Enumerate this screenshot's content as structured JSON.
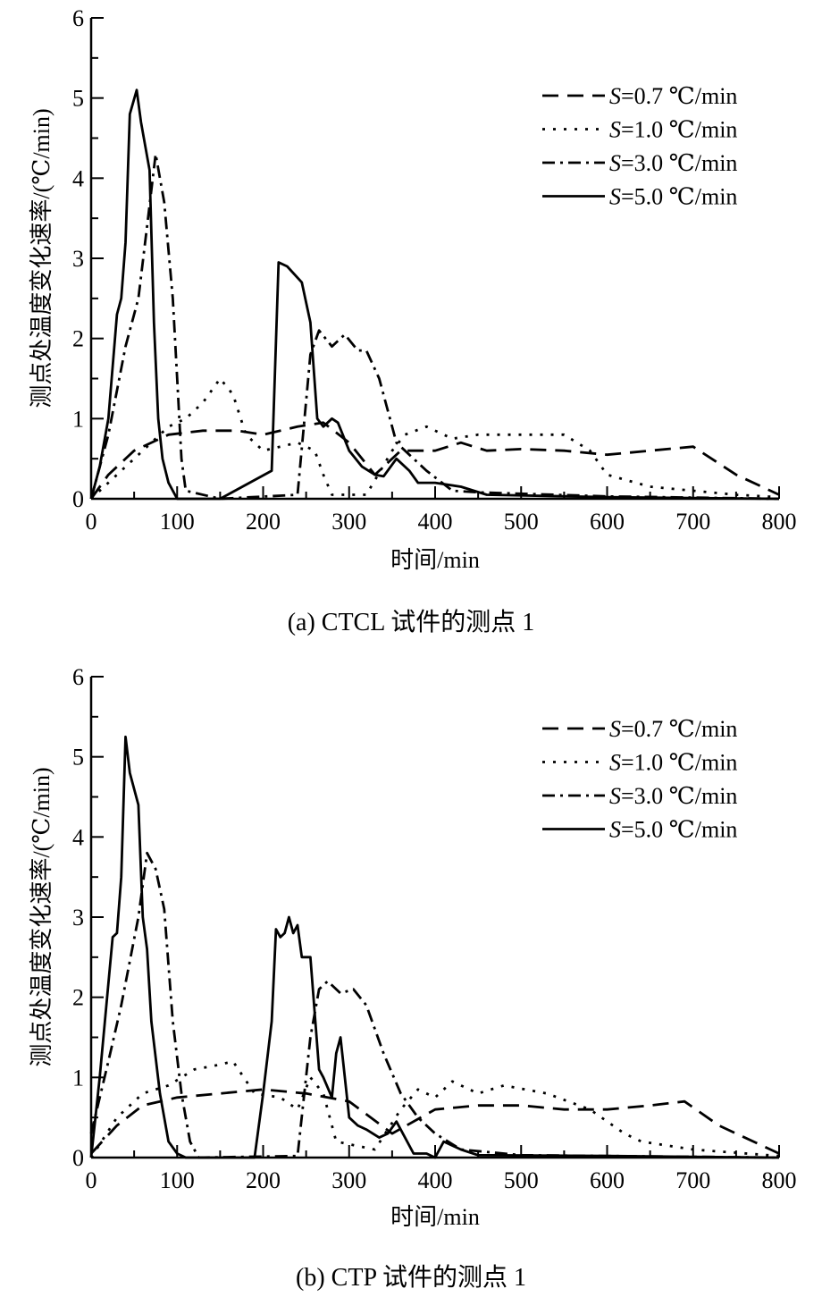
{
  "chart_data": [
    {
      "type": "line",
      "caption": "(a) CTCL 试件的测点 1",
      "xlabel": "时间/min",
      "ylabel": "测点处温度变化速率/(℃/min)",
      "xlim": [
        0,
        800
      ],
      "ylim": [
        0,
        6
      ],
      "xticks": [
        "0",
        "100",
        "200",
        "300",
        "400",
        "500",
        "600",
        "700",
        "800"
      ],
      "yticks": [
        "0",
        "1",
        "2",
        "3",
        "4",
        "5",
        "6"
      ],
      "grid": false,
      "legend_position": "top-right",
      "series": [
        {
          "name": "S=0.7 ℃/min",
          "style": "dashed",
          "points": [
            [
              0,
              0
            ],
            [
              20,
              0.3
            ],
            [
              50,
              0.6
            ],
            [
              90,
              0.8
            ],
            [
              130,
              0.85
            ],
            [
              170,
              0.85
            ],
            [
              200,
              0.8
            ],
            [
              240,
              0.9
            ],
            [
              270,
              0.95
            ],
            [
              300,
              0.7
            ],
            [
              330,
              0.3
            ],
            [
              360,
              0.6
            ],
            [
              400,
              0.6
            ],
            [
              430,
              0.7
            ],
            [
              460,
              0.6
            ],
            [
              500,
              0.62
            ],
            [
              550,
              0.6
            ],
            [
              600,
              0.55
            ],
            [
              650,
              0.6
            ],
            [
              700,
              0.65
            ],
            [
              750,
              0.3
            ],
            [
              800,
              0.05
            ]
          ]
        },
        {
          "name": "S=1.0 ℃/min",
          "style": "dotted",
          "points": [
            [
              0,
              0
            ],
            [
              50,
              0.5
            ],
            [
              90,
              0.9
            ],
            [
              110,
              1.0
            ],
            [
              130,
              1.2
            ],
            [
              150,
              1.5
            ],
            [
              165,
              1.3
            ],
            [
              180,
              0.8
            ],
            [
              200,
              0.6
            ],
            [
              240,
              0.7
            ],
            [
              260,
              0.6
            ],
            [
              270,
              0.3
            ],
            [
              280,
              0.05
            ],
            [
              320,
              0.05
            ],
            [
              350,
              0.6
            ],
            [
              365,
              0.8
            ],
            [
              390,
              0.9
            ],
            [
              420,
              0.75
            ],
            [
              450,
              0.8
            ],
            [
              500,
              0.8
            ],
            [
              550,
              0.8
            ],
            [
              580,
              0.6
            ],
            [
              600,
              0.3
            ],
            [
              650,
              0.15
            ],
            [
              700,
              0.1
            ],
            [
              750,
              0.05
            ],
            [
              800,
              0.02
            ]
          ]
        },
        {
          "name": "S=3.0 ℃/min",
          "style": "dashdot",
          "points": [
            [
              0,
              0
            ],
            [
              20,
              0.8
            ],
            [
              40,
              1.9
            ],
            [
              55,
              2.5
            ],
            [
              65,
              3.4
            ],
            [
              75,
              4.3
            ],
            [
              85,
              3.7
            ],
            [
              95,
              2.5
            ],
            [
              100,
              1.5
            ],
            [
              105,
              0.5
            ],
            [
              110,
              0.1
            ],
            [
              150,
              0
            ],
            [
              240,
              0.05
            ],
            [
              255,
              1.8
            ],
            [
              265,
              2.1
            ],
            [
              280,
              1.9
            ],
            [
              295,
              2.05
            ],
            [
              310,
              1.85
            ],
            [
              320,
              1.85
            ],
            [
              335,
              1.5
            ],
            [
              355,
              0.7
            ],
            [
              370,
              0.55
            ],
            [
              390,
              0.35
            ],
            [
              420,
              0.1
            ],
            [
              450,
              0.08
            ],
            [
              600,
              0.03
            ],
            [
              800,
              0
            ]
          ]
        },
        {
          "name": "S=5.0 ℃/min",
          "style": "solid",
          "points": [
            [
              0,
              0
            ],
            [
              10,
              0.4
            ],
            [
              20,
              1.0
            ],
            [
              30,
              2.3
            ],
            [
              35,
              2.5
            ],
            [
              40,
              3.2
            ],
            [
              45,
              4.8
            ],
            [
              53,
              5.1
            ],
            [
              58,
              4.7
            ],
            [
              68,
              4.1
            ],
            [
              73,
              2.2
            ],
            [
              78,
              1.0
            ],
            [
              83,
              0.5
            ],
            [
              90,
              0.2
            ],
            [
              100,
              0
            ],
            [
              150,
              0
            ],
            [
              210,
              0.35
            ],
            [
              218,
              2.95
            ],
            [
              228,
              2.9
            ],
            [
              245,
              2.7
            ],
            [
              255,
              2.2
            ],
            [
              263,
              1.0
            ],
            [
              270,
              0.9
            ],
            [
              280,
              1.0
            ],
            [
              287,
              0.95
            ],
            [
              300,
              0.6
            ],
            [
              315,
              0.4
            ],
            [
              330,
              0.3
            ],
            [
              340,
              0.28
            ],
            [
              355,
              0.5
            ],
            [
              370,
              0.35
            ],
            [
              380,
              0.2
            ],
            [
              400,
              0.2
            ],
            [
              430,
              0.15
            ],
            [
              460,
              0.05
            ],
            [
              600,
              0.02
            ],
            [
              800,
              0
            ]
          ]
        }
      ]
    },
    {
      "type": "line",
      "caption": "(b) CTP 试件的测点 1",
      "xlabel": "时间/min",
      "ylabel": "测点处温度变化速率/(℃/min)",
      "xlim": [
        0,
        800
      ],
      "ylim": [
        0,
        6
      ],
      "xticks": [
        "0",
        "100",
        "200",
        "300",
        "400",
        "500",
        "600",
        "700",
        "800"
      ],
      "yticks": [
        "0",
        "1",
        "2",
        "3",
        "4",
        "5",
        "6"
      ],
      "grid": false,
      "legend_position": "top-right",
      "series": [
        {
          "name": "S=0.7 ℃/min",
          "style": "dashed",
          "points": [
            [
              0,
              0.05
            ],
            [
              30,
              0.4
            ],
            [
              60,
              0.65
            ],
            [
              100,
              0.75
            ],
            [
              150,
              0.8
            ],
            [
              200,
              0.85
            ],
            [
              250,
              0.8
            ],
            [
              300,
              0.7
            ],
            [
              350,
              0.3
            ],
            [
              400,
              0.6
            ],
            [
              450,
              0.65
            ],
            [
              500,
              0.65
            ],
            [
              550,
              0.6
            ],
            [
              600,
              0.6
            ],
            [
              650,
              0.65
            ],
            [
              690,
              0.7
            ],
            [
              730,
              0.4
            ],
            [
              800,
              0.05
            ]
          ]
        },
        {
          "name": "S=1.0 ℃/min",
          "style": "dotted",
          "points": [
            [
              0,
              0
            ],
            [
              30,
              0.5
            ],
            [
              60,
              0.8
            ],
            [
              90,
              0.9
            ],
            [
              120,
              1.1
            ],
            [
              145,
              1.15
            ],
            [
              165,
              1.2
            ],
            [
              190,
              0.8
            ],
            [
              220,
              0.75
            ],
            [
              240,
              0.6
            ],
            [
              255,
              1.0
            ],
            [
              270,
              0.8
            ],
            [
              285,
              0.2
            ],
            [
              330,
              0.1
            ],
            [
              360,
              0.6
            ],
            [
              380,
              0.85
            ],
            [
              400,
              0.75
            ],
            [
              420,
              0.95
            ],
            [
              450,
              0.8
            ],
            [
              480,
              0.9
            ],
            [
              530,
              0.8
            ],
            [
              580,
              0.6
            ],
            [
              620,
              0.3
            ],
            [
              640,
              0.2
            ],
            [
              700,
              0.1
            ],
            [
              800,
              0.02
            ]
          ]
        },
        {
          "name": "S=3.0 ℃/min",
          "style": "dashdot",
          "points": [
            [
              0,
              0.3
            ],
            [
              20,
              1.2
            ],
            [
              35,
              1.9
            ],
            [
              55,
              3.0
            ],
            [
              65,
              3.8
            ],
            [
              75,
              3.6
            ],
            [
              85,
              3.1
            ],
            [
              95,
              1.7
            ],
            [
              105,
              0.8
            ],
            [
              115,
              0.2
            ],
            [
              125,
              0
            ],
            [
              240,
              0.02
            ],
            [
              255,
              1.5
            ],
            [
              265,
              2.1
            ],
            [
              275,
              2.2
            ],
            [
              290,
              2.05
            ],
            [
              305,
              2.1
            ],
            [
              320,
              1.9
            ],
            [
              340,
              1.3
            ],
            [
              360,
              0.8
            ],
            [
              380,
              0.5
            ],
            [
              400,
              0.3
            ],
            [
              430,
              0.1
            ],
            [
              500,
              0.03
            ],
            [
              800,
              0
            ]
          ]
        },
        {
          "name": "S=5.0 ℃/min",
          "style": "solid",
          "points": [
            [
              0,
              0
            ],
            [
              10,
              1.0
            ],
            [
              25,
              2.75
            ],
            [
              30,
              2.8
            ],
            [
              35,
              3.5
            ],
            [
              40,
              5.25
            ],
            [
              45,
              4.8
            ],
            [
              55,
              4.4
            ],
            [
              60,
              3.0
            ],
            [
              65,
              2.6
            ],
            [
              70,
              1.7
            ],
            [
              80,
              0.8
            ],
            [
              90,
              0.2
            ],
            [
              100,
              0.05
            ],
            [
              110,
              0
            ],
            [
              190,
              0
            ],
            [
              200,
              0.8
            ],
            [
              210,
              1.7
            ],
            [
              215,
              2.85
            ],
            [
              220,
              2.75
            ],
            [
              225,
              2.8
            ],
            [
              230,
              3.0
            ],
            [
              235,
              2.8
            ],
            [
              240,
              2.9
            ],
            [
              245,
              2.5
            ],
            [
              255,
              2.5
            ],
            [
              265,
              1.1
            ],
            [
              270,
              1.0
            ],
            [
              280,
              0.75
            ],
            [
              285,
              1.3
            ],
            [
              290,
              1.5
            ],
            [
              300,
              0.5
            ],
            [
              310,
              0.4
            ],
            [
              320,
              0.35
            ],
            [
              335,
              0.25
            ],
            [
              345,
              0.3
            ],
            [
              355,
              0.45
            ],
            [
              375,
              0.05
            ],
            [
              390,
              0.05
            ],
            [
              400,
              0
            ],
            [
              410,
              0.2
            ],
            [
              430,
              0.1
            ],
            [
              450,
              0.03
            ],
            [
              600,
              0.02
            ],
            [
              800,
              0
            ]
          ]
        }
      ]
    }
  ]
}
